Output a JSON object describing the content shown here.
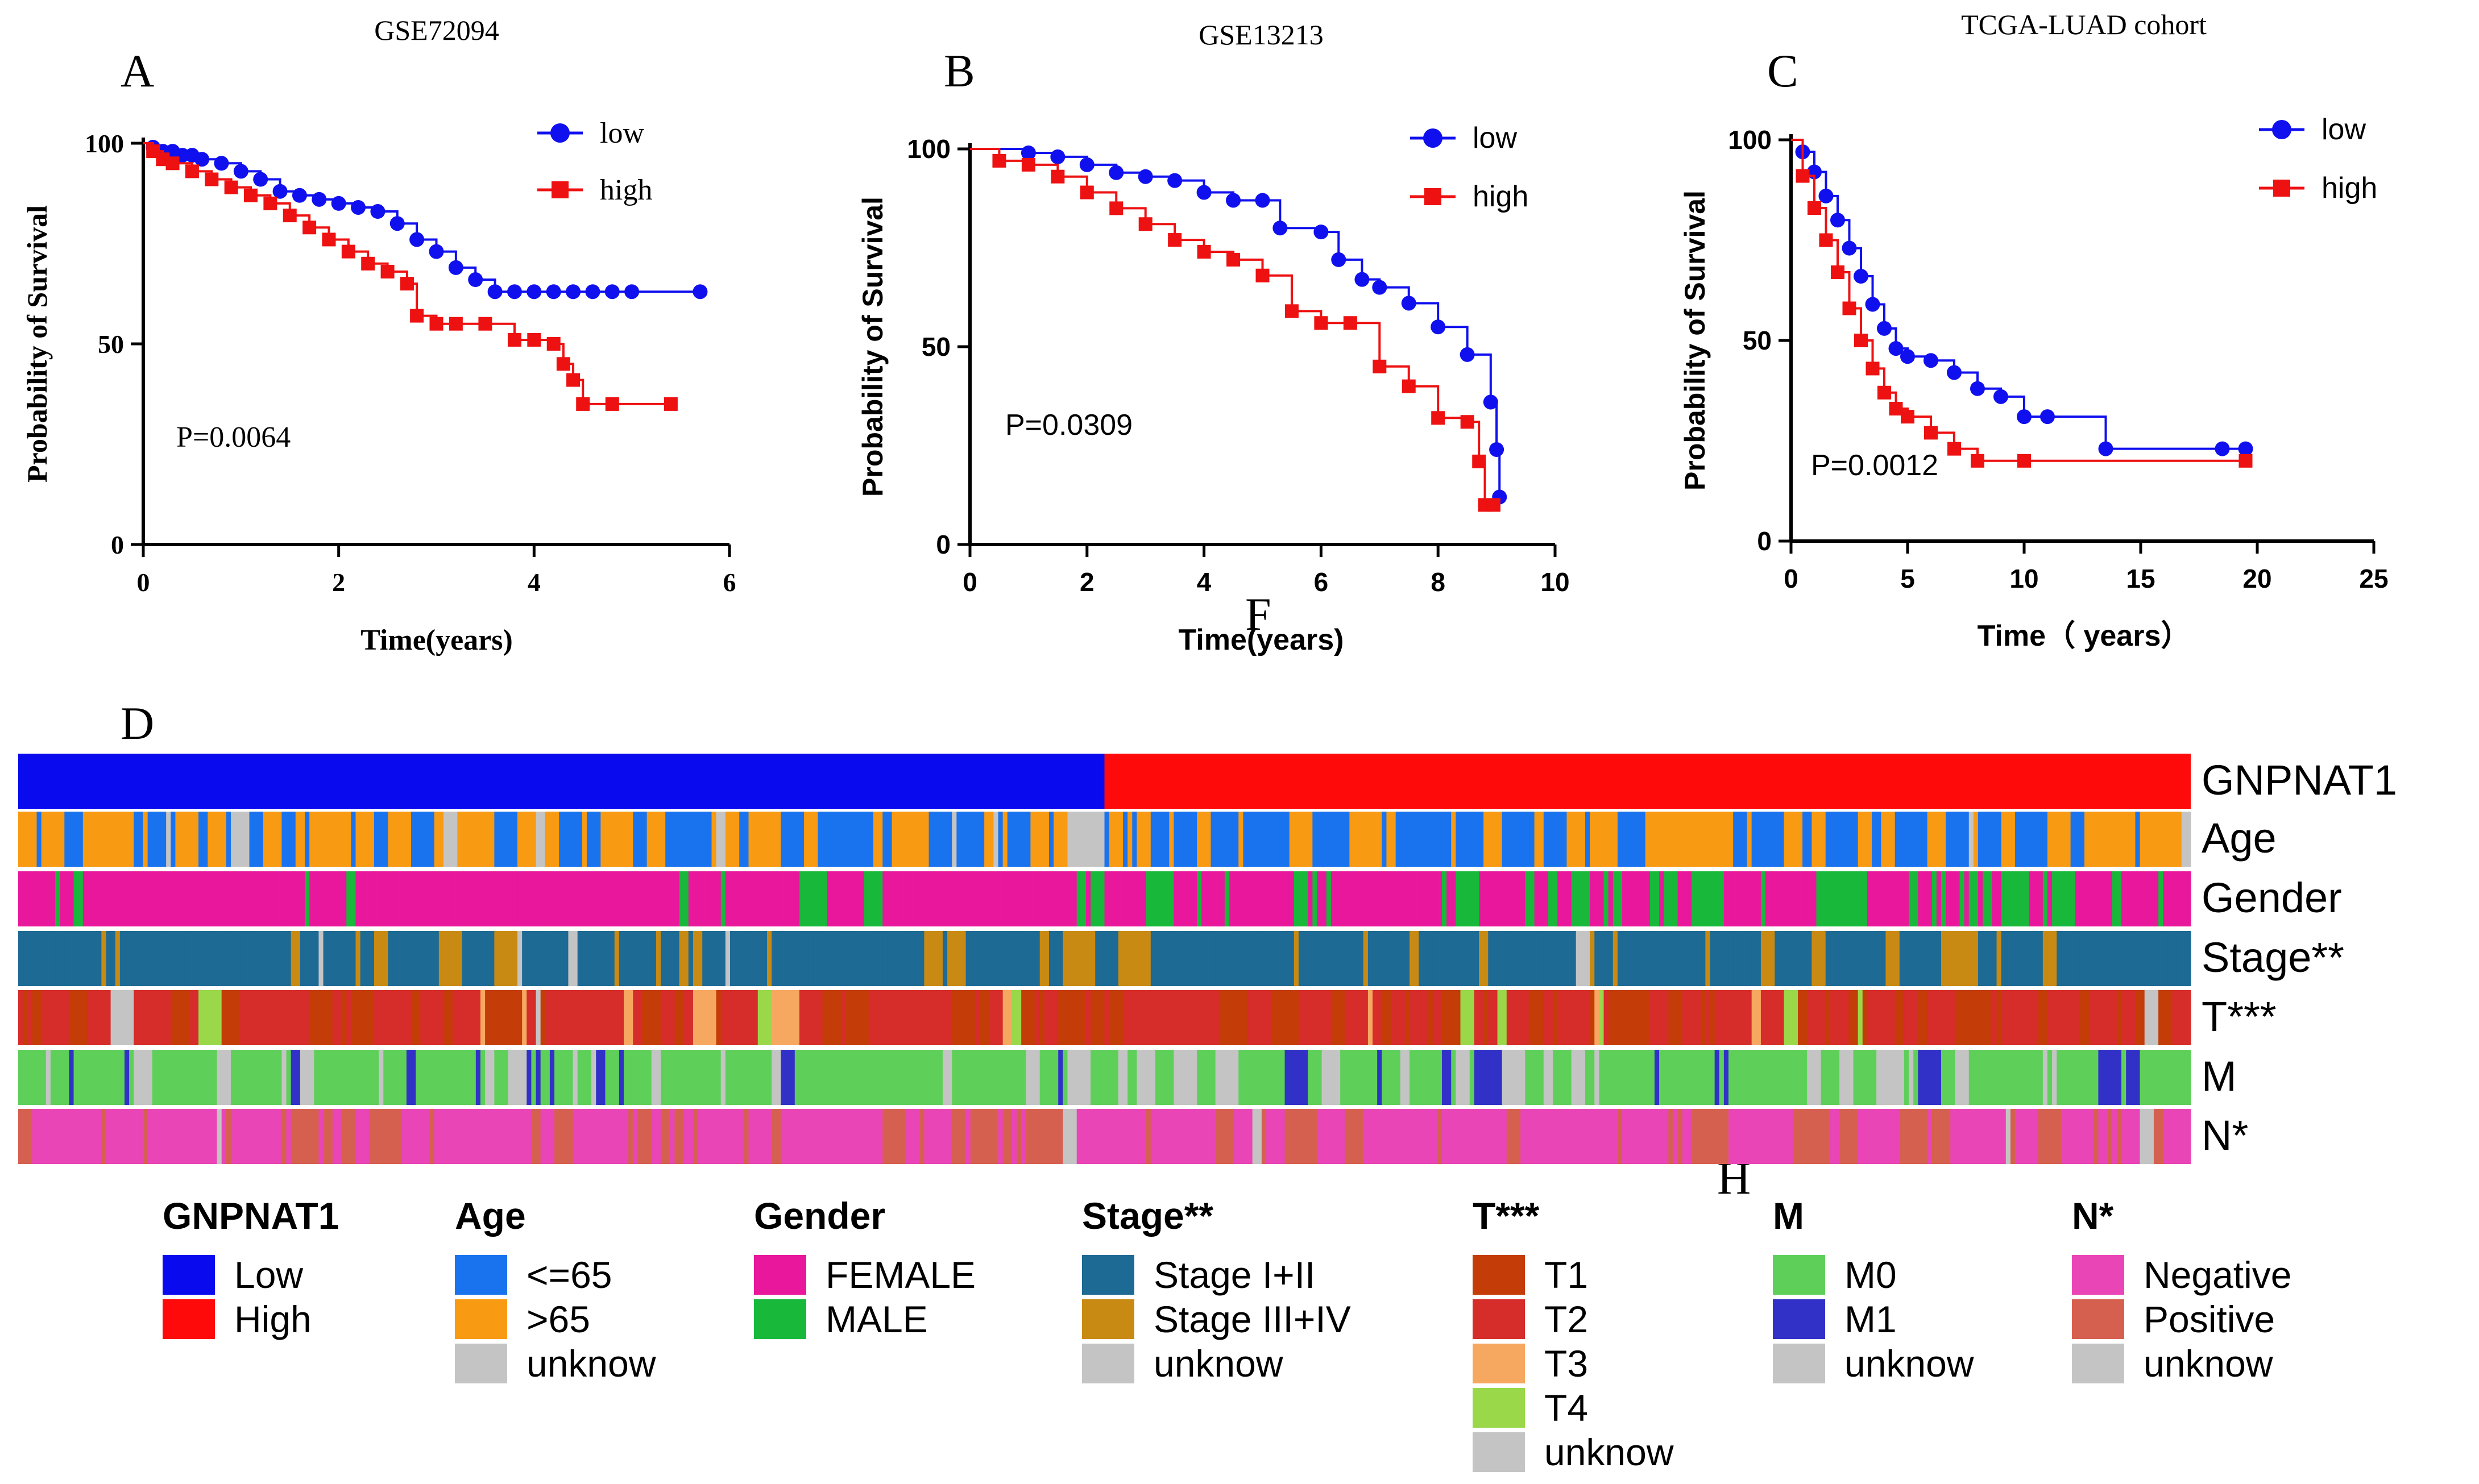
{
  "colors": {
    "low_line": "#1010ee",
    "high_line": "#ee1111",
    "axis": "#000000",
    "gnp_low": "#0a0aee",
    "gnp_high": "#ff0a0a",
    "age_le65": "#1a73ee",
    "age_gt65": "#f89a12",
    "unknow": "#c4c4c4",
    "female": "#e8179c",
    "male": "#18b83a",
    "stage_12": "#1d6a94",
    "stage_34": "#c98a14",
    "t1": "#c43c08",
    "t2": "#d62c2a",
    "t3": "#f7a860",
    "t4": "#9ad84a",
    "m0": "#5ed05a",
    "m1": "#3131c8",
    "n_neg": "#ea45b6",
    "n_pos": "#d66050"
  },
  "panel_letters": {
    "a": "A",
    "b": "B",
    "c": "C",
    "d": "D",
    "f": "F",
    "h": "H"
  },
  "chart_data": [
    {
      "type": "line",
      "id": "A",
      "title": "GSE72094",
      "xlabel": "Time(years)",
      "ylabel": "Probability of Survival",
      "xlim": [
        0,
        6
      ],
      "xticks": [
        0,
        2,
        4,
        6
      ],
      "ylim": [
        0,
        100
      ],
      "yticks": [
        0,
        50,
        100
      ],
      "annotation": "P=0.0064",
      "legend": [
        "low",
        "high"
      ],
      "series": [
        {
          "name": "low",
          "x": [
            0,
            0.1,
            0.2,
            0.3,
            0.4,
            0.5,
            0.6,
            0.8,
            1.0,
            1.2,
            1.4,
            1.6,
            1.8,
            2.0,
            2.2,
            2.4,
            2.6,
            2.8,
            3.0,
            3.2,
            3.4,
            3.6,
            3.8,
            4.0,
            4.2,
            4.4,
            4.6,
            4.8,
            5.0,
            5.7
          ],
          "y": [
            100,
            99,
            98,
            98,
            97,
            97,
            96,
            95,
            93,
            91,
            88,
            87,
            86,
            85,
            84,
            83,
            80,
            76,
            73,
            69,
            66,
            63,
            63,
            63,
            63,
            63,
            63,
            63,
            63,
            63
          ]
        },
        {
          "name": "high",
          "x": [
            0,
            0.1,
            0.2,
            0.3,
            0.5,
            0.7,
            0.9,
            1.1,
            1.3,
            1.5,
            1.7,
            1.9,
            2.1,
            2.3,
            2.5,
            2.7,
            2.8,
            3.0,
            3.2,
            3.5,
            3.8,
            4.0,
            4.2,
            4.3,
            4.4,
            4.5,
            4.8,
            5.4
          ],
          "y": [
            100,
            98,
            96,
            95,
            93,
            91,
            89,
            87,
            85,
            82,
            79,
            76,
            73,
            70,
            68,
            65,
            57,
            55,
            55,
            55,
            51,
            51,
            50,
            45,
            41,
            35,
            35,
            35
          ]
        }
      ]
    },
    {
      "type": "line",
      "id": "B",
      "title": "GSE13213",
      "xlabel": "Time(years)",
      "ylabel": "Probability of Survival",
      "xlim": [
        0,
        10
      ],
      "xticks": [
        0,
        2,
        4,
        6,
        8,
        10
      ],
      "ylim": [
        0,
        100
      ],
      "yticks": [
        0,
        50,
        100
      ],
      "annotation": "P=0.0309",
      "legend": [
        "low",
        "high"
      ],
      "series": [
        {
          "name": "low",
          "x": [
            0,
            1.0,
            1.5,
            2.0,
            2.5,
            3.0,
            3.5,
            4.0,
            4.5,
            5.0,
            5.3,
            6.0,
            6.3,
            6.7,
            7.0,
            7.5,
            8.0,
            8.5,
            8.9,
            9.0,
            9.05
          ],
          "y": [
            100,
            99,
            98,
            96,
            94,
            93,
            92,
            89,
            87,
            87,
            80,
            79,
            72,
            67,
            65,
            61,
            55,
            48,
            36,
            24,
            12
          ]
        },
        {
          "name": "high",
          "x": [
            0,
            0.5,
            1.0,
            1.5,
            2.0,
            2.5,
            3.0,
            3.5,
            4.0,
            4.5,
            5.0,
            5.5,
            6.0,
            6.5,
            7.0,
            7.5,
            8.0,
            8.5,
            8.7,
            8.8,
            8.95
          ],
          "y": [
            100,
            97,
            96,
            93,
            89,
            85,
            81,
            77,
            74,
            72,
            68,
            59,
            56,
            56,
            45,
            40,
            32,
            31,
            21,
            10,
            10
          ]
        }
      ]
    },
    {
      "type": "line",
      "id": "C",
      "title": "TCGA-LUAD cohort",
      "xlabel": "Time（ years）",
      "ylabel": "Probability of Survival",
      "xlim": [
        0,
        25
      ],
      "xticks": [
        0,
        5,
        10,
        15,
        20,
        25
      ],
      "ylim": [
        0,
        100
      ],
      "yticks": [
        0,
        50,
        100
      ],
      "annotation": "P=0.0012",
      "legend": [
        "low",
        "high"
      ],
      "series": [
        {
          "name": "low",
          "x": [
            0,
            0.5,
            1,
            1.5,
            2,
            2.5,
            3,
            3.5,
            4,
            4.5,
            5,
            6,
            7,
            8,
            9,
            10,
            11,
            13.5,
            18.5,
            19.5
          ],
          "y": [
            100,
            97,
            92,
            86,
            80,
            73,
            66,
            59,
            53,
            48,
            46,
            45,
            42,
            38,
            36,
            31,
            31,
            23,
            23,
            23
          ]
        },
        {
          "name": "high",
          "x": [
            0,
            0.5,
            1,
            1.5,
            2,
            2.5,
            3,
            3.5,
            4,
            4.5,
            5,
            6,
            7,
            8,
            10,
            19.5
          ],
          "y": [
            100,
            91,
            83,
            75,
            67,
            58,
            50,
            43,
            37,
            33,
            31,
            27,
            23,
            20,
            20,
            20
          ]
        }
      ]
    },
    {
      "type": "heatmap",
      "id": "D",
      "rows": [
        {
          "key": "gnp",
          "label": "GNPNAT1"
        },
        {
          "key": "age",
          "label": "Age"
        },
        {
          "key": "gender",
          "label": "Gender"
        },
        {
          "key": "stage",
          "label": "Stage**"
        },
        {
          "key": "t",
          "label": "T***"
        },
        {
          "key": "m",
          "label": "M"
        },
        {
          "key": "n",
          "label": "N*"
        }
      ],
      "low_fraction": 0.5
    }
  ],
  "legend_groups": [
    {
      "title": "GNPNAT1",
      "items": [
        {
          "label": "Low",
          "color": "#0a0aee"
        },
        {
          "label": "High",
          "color": "#ff0a0a"
        }
      ]
    },
    {
      "title": "Age",
      "items": [
        {
          "label": "<=65",
          "color": "#1a73ee"
        },
        {
          "label": ">65",
          "color": "#f89a12"
        },
        {
          "label": "unknow",
          "color": "#c4c4c4"
        }
      ]
    },
    {
      "title": "Gender",
      "items": [
        {
          "label": "FEMALE",
          "color": "#e8179c"
        },
        {
          "label": "MALE",
          "color": "#18b83a"
        }
      ]
    },
    {
      "title": "Stage**",
      "items": [
        {
          "label": "Stage I+II",
          "color": "#1d6a94"
        },
        {
          "label": "Stage III+IV",
          "color": "#c98a14"
        },
        {
          "label": "unknow",
          "color": "#c4c4c4"
        }
      ]
    },
    {
      "title": "T***",
      "items": [
        {
          "label": "T1",
          "color": "#c43c08"
        },
        {
          "label": "T2",
          "color": "#d62c2a"
        },
        {
          "label": "T3",
          "color": "#f7a860"
        },
        {
          "label": "T4",
          "color": "#9ad84a"
        },
        {
          "label": "unknow",
          "color": "#c4c4c4"
        }
      ]
    },
    {
      "title": "M",
      "items": [
        {
          "label": "M0",
          "color": "#5ed05a"
        },
        {
          "label": "M1",
          "color": "#3131c8"
        },
        {
          "label": "unknow",
          "color": "#c4c4c4"
        }
      ]
    },
    {
      "title": "N*",
      "items": [
        {
          "label": "Negative",
          "color": "#ea45b6"
        },
        {
          "label": "Positive",
          "color": "#d66050"
        },
        {
          "label": "unknow",
          "color": "#c4c4c4"
        }
      ]
    }
  ]
}
